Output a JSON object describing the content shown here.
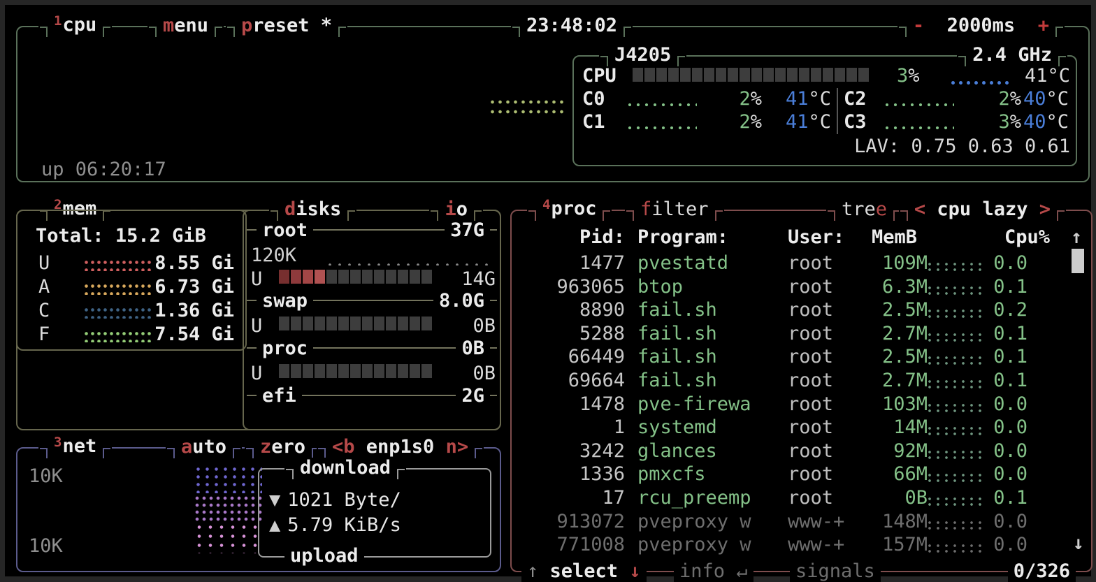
{
  "colors": {
    "accent_red": "#b64949",
    "bright_red": "#c23b3b",
    "green": "#84c188",
    "blue": "#4a7ed8",
    "cpu_box_border": "#5a715a",
    "mem_box_border": "#66664d",
    "net_box_border": "#5b5b8c",
    "proc_box_border": "#7e4d4d",
    "cpu_graph_dot": "#adbd72",
    "temp_graph_dot": "#4a7ed8",
    "core_graph_dot": "#84c188",
    "io_graph_dot": "#8a8a8a"
  },
  "chrome": {
    "cpu_tab_num": "1",
    "cpu_tab": "cpu",
    "menu_hl": "m",
    "menu_rest": "enu",
    "preset_hl": "p",
    "preset_rest": "reset *",
    "clock": "23:48:02",
    "interval_minus": "-",
    "interval_value": "2000ms",
    "interval_plus": "+"
  },
  "cpu": {
    "model": "J4205",
    "freq": "2.4 GHz",
    "uptime": "up 06:20:17",
    "pct_unit": "%",
    "total": {
      "label": "CPU",
      "pct": "3",
      "temp": "41°C"
    },
    "cores": [
      {
        "label": "C0",
        "pct": "2",
        "temp": "41",
        "unit": "°C"
      },
      {
        "label": "C1",
        "pct": "2",
        "temp": "41",
        "unit": "°C"
      },
      {
        "label": "C2",
        "pct": "2",
        "temp": "40",
        "unit": "°C"
      },
      {
        "label": "C3",
        "pct": "3",
        "temp": "40",
        "unit": "°C"
      }
    ],
    "lav_label": "LAV:",
    "lav_values": "0.75 0.63 0.61"
  },
  "mem": {
    "num": "2",
    "title": "mem",
    "total_label": "Total:",
    "total_value": "15.2 GiB",
    "rows": [
      {
        "label": "U",
        "value": "8.55 Gi",
        "color": "#cf5f5f"
      },
      {
        "label": "A",
        "value": "6.73 Gi",
        "color": "#d8a85c"
      },
      {
        "label": "C",
        "value": "1.36 Gi",
        "color": "#3f6385"
      },
      {
        "label": "F",
        "value": "7.54 Gi",
        "color": "#94cd77"
      }
    ]
  },
  "disks": {
    "title_hl": "d",
    "title_rest": "isks",
    "io_hl": "i",
    "io_rest": "o",
    "root_name": "root",
    "root_size": "37G",
    "root_io": "120K",
    "root_used_label": "U",
    "root_used": "14G",
    "swap_name": "swap",
    "swap_size": "8.0G",
    "swap_used_label": "U",
    "swap_used": "0B",
    "proc_name": "proc",
    "proc_size": "0B",
    "proc_used_label": "U",
    "proc_used": "0B",
    "efi_name": "efi",
    "efi_size": "2G"
  },
  "net": {
    "num": "3",
    "title": "net",
    "auto_hl": "a",
    "auto_rest": "uto",
    "zero_hl": "z",
    "zero_rest": "ero",
    "iface_prev": "<b",
    "iface": "enp1s0",
    "iface_next": "n>",
    "scale_top": "10K",
    "scale_bottom": "10K",
    "download_label": "download",
    "download_arrow": "▼",
    "download_value": "1021 Byte/",
    "upload_arrow": "▲",
    "upload_value": "5.79 KiB/s",
    "upload_label": "upload"
  },
  "proc": {
    "num": "4",
    "title": "proc",
    "filter_hl": "f",
    "filter_rest": "ilter",
    "tree_pre": "tre",
    "tree_hl": "e",
    "sort_prev": "<",
    "sort": "cpu lazy",
    "sort_next": ">",
    "headers": {
      "pid": "Pid:",
      "program": "Program:",
      "user": "User:",
      "mem": "MemB",
      "cpu": "Cpu%",
      "scroll_up": "↑"
    },
    "rows": [
      {
        "pid": "1477",
        "program": "pvestatd",
        "user": "root",
        "mem": "109M",
        "cpu": "0.0",
        "dim": false
      },
      {
        "pid": "963065",
        "program": "btop",
        "user": "root",
        "mem": "6.3M",
        "cpu": "0.1",
        "dim": false
      },
      {
        "pid": "8890",
        "program": "fail.sh",
        "user": "root",
        "mem": "2.5M",
        "cpu": "0.2",
        "dim": false
      },
      {
        "pid": "5288",
        "program": "fail.sh",
        "user": "root",
        "mem": "2.7M",
        "cpu": "0.1",
        "dim": false
      },
      {
        "pid": "66449",
        "program": "fail.sh",
        "user": "root",
        "mem": "2.5M",
        "cpu": "0.1",
        "dim": false
      },
      {
        "pid": "69664",
        "program": "fail.sh",
        "user": "root",
        "mem": "2.7M",
        "cpu": "0.1",
        "dim": false
      },
      {
        "pid": "1478",
        "program": "pve-firewa",
        "user": "root",
        "mem": "103M",
        "cpu": "0.0",
        "dim": false
      },
      {
        "pid": "1",
        "program": "systemd",
        "user": "root",
        "mem": "14M",
        "cpu": "0.0",
        "dim": false
      },
      {
        "pid": "3242",
        "program": "glances",
        "user": "root",
        "mem": "92M",
        "cpu": "0.0",
        "dim": false
      },
      {
        "pid": "1336",
        "program": "pmxcfs",
        "user": "root",
        "mem": "66M",
        "cpu": "0.0",
        "dim": false
      },
      {
        "pid": "17",
        "program": "rcu_preemp",
        "user": "root",
        "mem": "0B",
        "cpu": "0.1",
        "dim": false
      },
      {
        "pid": "913072",
        "program": "pveproxy w",
        "user": "www-+",
        "mem": "148M",
        "cpu": "0.0",
        "dim": true
      },
      {
        "pid": "771008",
        "program": "pveproxy w",
        "user": "www-+",
        "mem": "157M",
        "cpu": "0.0",
        "dim": true
      }
    ],
    "footer": {
      "up": "↑",
      "select": "select",
      "down": "↓",
      "info": "info",
      "enter": "↵",
      "signals": "signals",
      "count": "0/326",
      "scroll_down": "↓"
    }
  }
}
